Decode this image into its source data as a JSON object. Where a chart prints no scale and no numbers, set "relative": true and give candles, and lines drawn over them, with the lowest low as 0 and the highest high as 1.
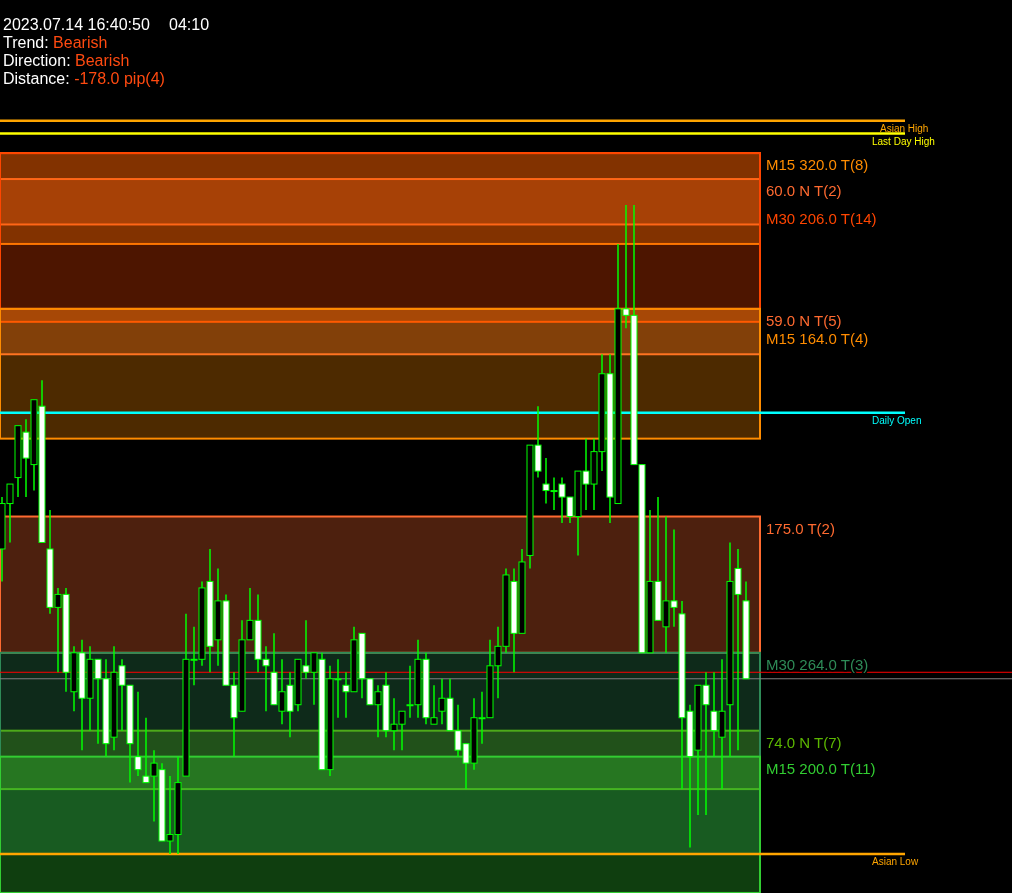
{
  "chart_data": {
    "type": "candlestick",
    "relative": true,
    "title": "2023.07.14 16:40:50",
    "subtitle": "04:10",
    "annotations": [
      "Trend: Bearish",
      "Direction: Bearish",
      "Distance: -178.0 pip(4)"
    ],
    "color": "#00ff00",
    "categories": [
      null,
      null,
      null,
      null,
      null,
      null,
      null,
      null,
      null,
      null,
      null,
      null,
      null,
      null,
      null,
      null,
      null,
      null,
      null,
      null,
      null,
      null,
      null,
      null,
      null,
      null,
      null,
      null,
      null,
      null,
      null,
      null,
      null,
      null,
      null,
      null,
      null,
      null,
      null,
      null,
      null,
      null,
      null,
      null,
      null,
      null,
      null,
      null,
      null,
      null,
      null,
      null,
      null,
      null,
      null,
      null,
      null,
      null,
      null,
      null,
      null,
      null,
      null,
      null,
      null,
      null,
      null,
      null,
      null,
      null,
      null,
      null,
      null,
      null,
      null,
      null,
      null,
      null,
      null,
      null,
      null,
      null,
      null,
      null,
      null,
      null,
      null,
      null,
      null,
      null,
      null,
      null,
      null,
      null
    ],
    "ohlc": [
      [
        0.47,
        0.55,
        0.42,
        0.54
      ],
      [
        0.54,
        0.57,
        0.48,
        0.57
      ],
      [
        0.58,
        0.66,
        0.55,
        0.66
      ],
      [
        0.65,
        0.67,
        0.55,
        0.61
      ],
      [
        0.6,
        0.7,
        0.56,
        0.7
      ],
      [
        0.69,
        0.73,
        0.48,
        0.48
      ],
      [
        0.47,
        0.53,
        0.37,
        0.38
      ],
      [
        0.38,
        0.41,
        0.28,
        0.4
      ],
      [
        0.4,
        0.41,
        0.25,
        0.28
      ],
      [
        0.25,
        0.32,
        0.22,
        0.31
      ],
      [
        0.31,
        0.33,
        0.16,
        0.24
      ],
      [
        0.24,
        0.32,
        0.19,
        0.3
      ],
      [
        0.3,
        0.3,
        0.17,
        0.27
      ],
      [
        0.27,
        0.3,
        0.15,
        0.17
      ],
      [
        0.18,
        0.32,
        0.16,
        0.28
      ],
      [
        0.29,
        0.3,
        0.19,
        0.26
      ],
      [
        0.26,
        0.26,
        0.11,
        0.17
      ],
      [
        0.15,
        0.25,
        0.12,
        0.13
      ],
      [
        0.12,
        0.21,
        0.11,
        0.11
      ],
      [
        0.12,
        0.16,
        0.05,
        0.14
      ],
      [
        0.13,
        0.14,
        0.02,
        0.02
      ],
      [
        0.02,
        0.12,
        0,
        0.03
      ],
      [
        0.03,
        0.15,
        0,
        0.11
      ],
      [
        0.12,
        0.37,
        0.12,
        0.3
      ],
      [
        0.3,
        0.35,
        0.26,
        0.3
      ],
      [
        0.3,
        0.42,
        0.29,
        0.41
      ],
      [
        0.42,
        0.47,
        0.28,
        0.32
      ],
      [
        0.33,
        0.44,
        0.29,
        0.39
      ],
      [
        0.39,
        0.4,
        0.26,
        0.26
      ],
      [
        0.26,
        0.28,
        0.15,
        0.21
      ],
      [
        0.22,
        0.36,
        0.22,
        0.33
      ],
      [
        0.33,
        0.41,
        0.33,
        0.36
      ],
      [
        0.36,
        0.4,
        0.28,
        0.3
      ],
      [
        0.3,
        0.32,
        0.22,
        0.29
      ],
      [
        0.28,
        0.34,
        0.23,
        0.23
      ],
      [
        0.22,
        0.3,
        0.2,
        0.25
      ],
      [
        0.26,
        0.28,
        0.18,
        0.22
      ],
      [
        0.23,
        0.3,
        0.22,
        0.3
      ],
      [
        0.29,
        0.36,
        0.27,
        0.28
      ],
      [
        0.28,
        0.31,
        0.23,
        0.31
      ],
      [
        0.3,
        0.31,
        0.13,
        0.13
      ],
      [
        0.13,
        0.29,
        0.12,
        0.27
      ],
      [
        0.27,
        0.3,
        0.21,
        0.27
      ],
      [
        0.26,
        0.28,
        0.21,
        0.25
      ],
      [
        0.25,
        0.35,
        0.25,
        0.33
      ],
      [
        0.34,
        0.34,
        0.24,
        0.27
      ],
      [
        0.27,
        0.27,
        0.23,
        0.23
      ],
      [
        0.23,
        0.26,
        0.18,
        0.25
      ],
      [
        0.26,
        0.28,
        0.18,
        0.19
      ],
      [
        0.19,
        0.24,
        0.16,
        0.2
      ],
      [
        0.2,
        0.22,
        0.16,
        0.22
      ],
      [
        0.23,
        0.29,
        0.21,
        0.23
      ],
      [
        0.23,
        0.33,
        0.21,
        0.3
      ],
      [
        0.3,
        0.31,
        0.2,
        0.21
      ],
      [
        0.2,
        0.26,
        0.2,
        0.21
      ],
      [
        0.22,
        0.27,
        0.2,
        0.24
      ],
      [
        0.24,
        0.27,
        0.19,
        0.19
      ],
      [
        0.19,
        0.23,
        0.15,
        0.16
      ],
      [
        0.17,
        0.17,
        0.1,
        0.14
      ],
      [
        0.14,
        0.24,
        0.13,
        0.21
      ],
      [
        0.21,
        0.25,
        0.17,
        0.21
      ],
      [
        0.21,
        0.33,
        0.21,
        0.29
      ],
      [
        0.29,
        0.35,
        0.24,
        0.32
      ],
      [
        0.32,
        0.44,
        0.31,
        0.43
      ],
      [
        0.42,
        0.44,
        0.28,
        0.34
      ],
      [
        0.34,
        0.47,
        0.34,
        0.45
      ],
      [
        0.46,
        0.63,
        0.44,
        0.63
      ],
      [
        0.63,
        0.69,
        0.58,
        0.59
      ],
      [
        0.57,
        0.61,
        0.54,
        0.56
      ],
      [
        0.56,
        0.58,
        0.53,
        0.56
      ],
      [
        0.57,
        0.58,
        0.51,
        0.55
      ],
      [
        0.55,
        0.55,
        0.51,
        0.52
      ],
      [
        0.52,
        0.59,
        0.46,
        0.59
      ],
      [
        0.59,
        0.64,
        0.53,
        0.57
      ],
      [
        0.57,
        0.64,
        0.53,
        0.62
      ],
      [
        0.62,
        0.77,
        0.59,
        0.74
      ],
      [
        0.74,
        0.77,
        0.51,
        0.55
      ],
      [
        0.54,
        0.94,
        0.54,
        0.84
      ],
      [
        0.84,
        1,
        0.81,
        0.83
      ],
      [
        0.83,
        1,
        0.6,
        0.6
      ],
      [
        0.6,
        0.6,
        0.31,
        0.31
      ],
      [
        0.31,
        0.53,
        0.31,
        0.42
      ],
      [
        0.42,
        0.55,
        0.36,
        0.36
      ],
      [
        0.35,
        0.52,
        0.31,
        0.39
      ],
      [
        0.39,
        0.5,
        0.35,
        0.38
      ],
      [
        0.37,
        0.39,
        0.1,
        0.21
      ],
      [
        0.22,
        0.23,
        0.01,
        0.15
      ],
      [
        0.16,
        0.26,
        0.06,
        0.26
      ],
      [
        0.26,
        0.28,
        0.06,
        0.23
      ],
      [
        0.22,
        0.28,
        0.15,
        0.19
      ],
      [
        0.18,
        0.3,
        0.1,
        0.22
      ],
      [
        0.23,
        0.48,
        0.15,
        0.42
      ],
      [
        0.44,
        0.47,
        0.16,
        0.4
      ],
      [
        0.39,
        0.42,
        0.27,
        0.27
      ]
    ],
    "ref_lines": [
      {
        "axis": "y",
        "value": 1.13,
        "label": "Asian High",
        "color": "#ffa500"
      },
      {
        "axis": "y",
        "value": 1.11,
        "label": "Last Day High",
        "color": "#ffff00"
      },
      {
        "axis": "y",
        "value": 0.68,
        "label": "Daily Open",
        "color": "#00ffff"
      },
      {
        "axis": "y",
        "value": 0,
        "label": "Asian Low",
        "color": "#ffa500"
      },
      {
        "axis": "y",
        "value": 0.28,
        "label": null,
        "color": "#ff0000"
      },
      {
        "axis": "y",
        "value": 0.27,
        "label": null,
        "color": "#808080"
      }
    ],
    "bands": [
      {
        "axis": "y",
        "from": 0.97,
        "to": 1.04,
        "label": "60.0 N T(2)",
        "color": "#ff6a30"
      },
      {
        "axis": "y",
        "from": 0.77,
        "to": 0.84,
        "label": "59.0 N T(5)",
        "color": "#ff6a30"
      },
      {
        "axis": "y",
        "from": 0.31,
        "to": 0.52,
        "label": "175.0 T(2)",
        "color": "#ff6a30"
      },
      {
        "axis": "y",
        "from": 0.1,
        "to": 0.19,
        "label": "74.0 N T(7)",
        "color": "#5cb800"
      },
      {
        "axis": "y",
        "from": 0.94,
        "to": 1.08,
        "label": "M15 320.0 T(8)",
        "color": "#ff8c00"
      },
      {
        "axis": "y",
        "from": 0.82,
        "to": 1.08,
        "label": "M30 206.0 T(14)",
        "color": "#ff4500"
      },
      {
        "axis": "y",
        "from": 0.64,
        "to": 0.84,
        "label": "M15 164.0 T(4)",
        "color": "#ff8c00"
      },
      {
        "axis": "y",
        "from": 0,
        "to": 0.31,
        "label": "M30 264.0 T(3)",
        "color": "#2e8b57"
      },
      {
        "axis": "y",
        "from": -0.06,
        "to": 0.15,
        "label": "M15 200.0 T(11)",
        "color": "#32cd32"
      }
    ]
  }
}
